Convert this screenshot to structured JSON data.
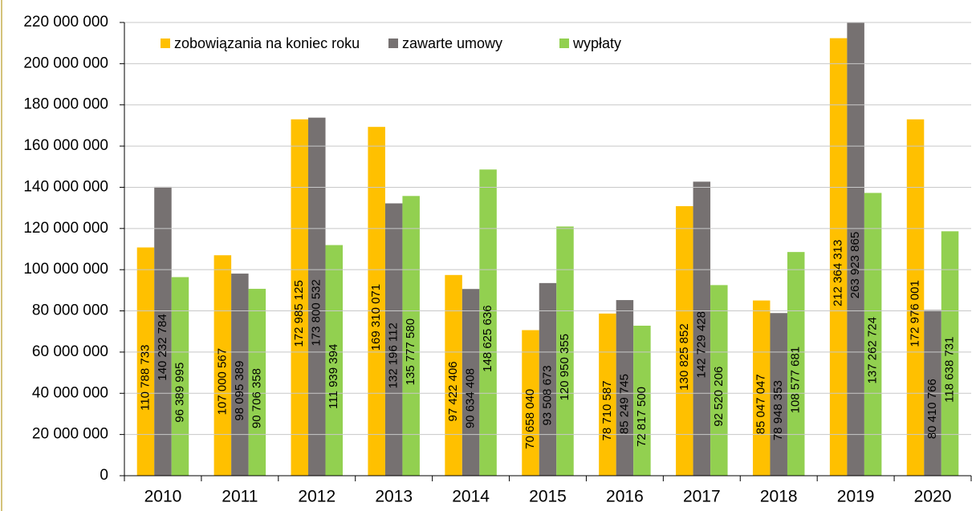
{
  "chart_data": {
    "type": "bar",
    "categories": [
      "2010",
      "2011",
      "2012",
      "2013",
      "2014",
      "2015",
      "2016",
      "2017",
      "2018",
      "2019",
      "2020"
    ],
    "series": [
      {
        "name": "zobowiązania na koniec roku",
        "color": "#ffc000",
        "values": [
          110788733,
          107000567,
          172985125,
          169310071,
          97422406,
          70658040,
          78710587,
          130825852,
          85047047,
          212364313,
          172976001
        ],
        "value_labels": [
          "110 788 733",
          "107 000 567",
          "172 985 125",
          "169 310 071",
          "97 422 406",
          "70 658 040",
          "78 710 587",
          "130 825 852",
          "85 047 047",
          "212 364 313",
          "172 976 001"
        ]
      },
      {
        "name": "zawarte umowy",
        "color": "#767171",
        "values": [
          140232784,
          98095389,
          173800532,
          132196112,
          90634408,
          93508673,
          85249745,
          142729428,
          78948353,
          263923865,
          80410766
        ],
        "value_labels": [
          "140 232 784",
          "98 095 389",
          "173 800 532",
          "132 196 112",
          "90 634 408",
          "93 508 673",
          "85 249 745",
          "142 729 428",
          "78 948 353",
          "263 923 865",
          "80 410 766"
        ]
      },
      {
        "name": "wypłaty",
        "color": "#92d050",
        "values": [
          96389995,
          90706358,
          111939394,
          135777580,
          148625636,
          120950355,
          72817500,
          92520206,
          108577681,
          137262724,
          118638731
        ],
        "value_labels": [
          "96 389 995",
          "90 706 358",
          "111 939 394",
          "135 777 580",
          "148 625 636",
          "120 950 355",
          "72 817 500",
          "92 520 206",
          "108 577 681",
          "137 262 724",
          "118 638 731"
        ]
      }
    ],
    "ylim": [
      0,
      220000000
    ],
    "yticks": [
      0,
      {
        "value": 20000000,
        "label": "20 000 000"
      },
      {
        "value": 40000000,
        "label": "40 000 000"
      },
      {
        "value": 60000000,
        "label": "60 000 000"
      },
      {
        "value": 80000000,
        "label": "80 000 000"
      },
      {
        "value": 100000000,
        "label": "100 000 000"
      },
      {
        "value": 120000000,
        "label": "120 000 000"
      },
      {
        "value": 140000000,
        "label": "140 000 000"
      },
      {
        "value": 160000000,
        "label": "160 000 000"
      },
      {
        "value": 180000000,
        "label": "180 000 000"
      },
      {
        "value": 200000000,
        "label": "200 000 000"
      },
      {
        "value": 220000000,
        "label": "220 000 000"
      }
    ],
    "grid": true,
    "legend": "top"
  }
}
